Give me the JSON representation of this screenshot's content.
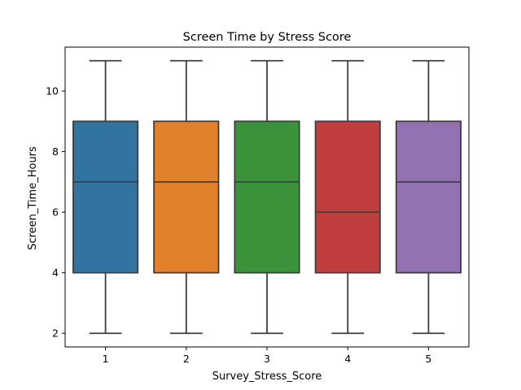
{
  "chart_data": {
    "type": "box",
    "title": "Screen Time by Stress Score",
    "xlabel": "Survey_Stress_Score",
    "ylabel": "Screen_Time_Hours",
    "categories": [
      "1",
      "2",
      "3",
      "4",
      "5"
    ],
    "ylim": [
      1.55,
      11.45
    ],
    "yticks": [
      2,
      4,
      6,
      8,
      10
    ],
    "grid": false,
    "legend": "none",
    "boxes": [
      {
        "category": "1",
        "whisker_low": 2,
        "q1": 4,
        "median": 7,
        "q3": 9,
        "whisker_high": 11,
        "color": "#3274a1"
      },
      {
        "category": "2",
        "whisker_low": 2,
        "q1": 4,
        "median": 7,
        "q3": 9,
        "whisker_high": 11,
        "color": "#e1812c"
      },
      {
        "category": "3",
        "whisker_low": 2,
        "q1": 4,
        "median": 7,
        "q3": 9,
        "whisker_high": 11,
        "color": "#3a923a"
      },
      {
        "category": "4",
        "whisker_low": 2,
        "q1": 4,
        "median": 6,
        "q3": 9,
        "whisker_high": 11,
        "color": "#c03d3e"
      },
      {
        "category": "5",
        "whisker_low": 2,
        "q1": 4,
        "median": 7,
        "q3": 9,
        "whisker_high": 11,
        "color": "#9372b2"
      }
    ]
  }
}
